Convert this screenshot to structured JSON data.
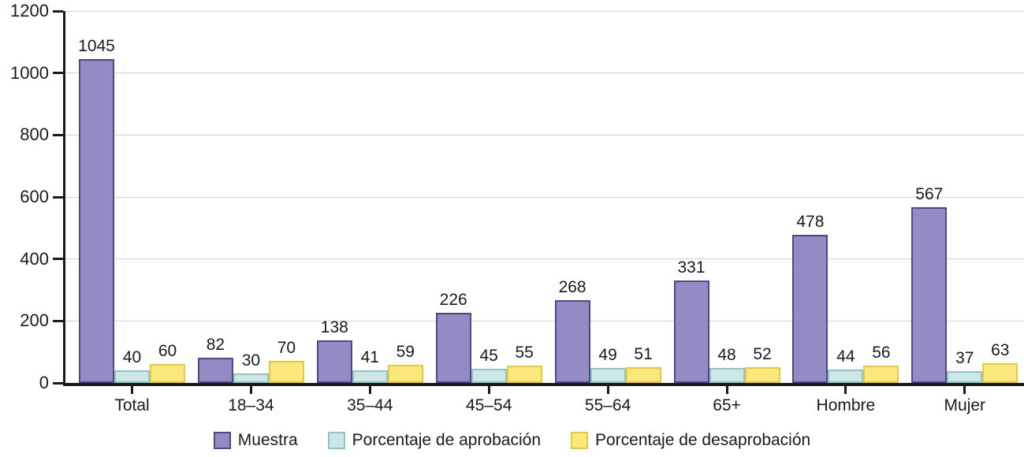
{
  "chart_data": {
    "type": "bar",
    "title": "",
    "xlabel": "",
    "ylabel": "",
    "categories": [
      "Total",
      "18–34",
      "35–44",
      "45–54",
      "55–64",
      "65+",
      "Hombre",
      "Mujer"
    ],
    "series": [
      {
        "name": "Muestra",
        "fill": "#938BC4",
        "border": "#4F4786",
        "values": [
          1045,
          82,
          138,
          226,
          268,
          331,
          478,
          567
        ]
      },
      {
        "name": "Porcentaje de aprobación",
        "fill": "#CBE8E5",
        "border": "#90C4C9",
        "values": [
          40,
          30,
          41,
          45,
          49,
          48,
          44,
          37
        ]
      },
      {
        "name": "Porcentaje de desaprobación",
        "fill": "#FAE87D",
        "border": "#E9C83E",
        "values": [
          60,
          70,
          59,
          55,
          51,
          52,
          56,
          63
        ]
      }
    ],
    "ylim": [
      0,
      1200
    ],
    "yticks": [
      0,
      200,
      400,
      600,
      800,
      1000,
      1200
    ],
    "grid": true,
    "bar_value_labels": true,
    "legend_position": "bottom"
  },
  "colors": {
    "axis": "#1a1a1a",
    "gridline": "#d2d2d2",
    "text": "#1a1a1a",
    "background": "#ffffff"
  }
}
